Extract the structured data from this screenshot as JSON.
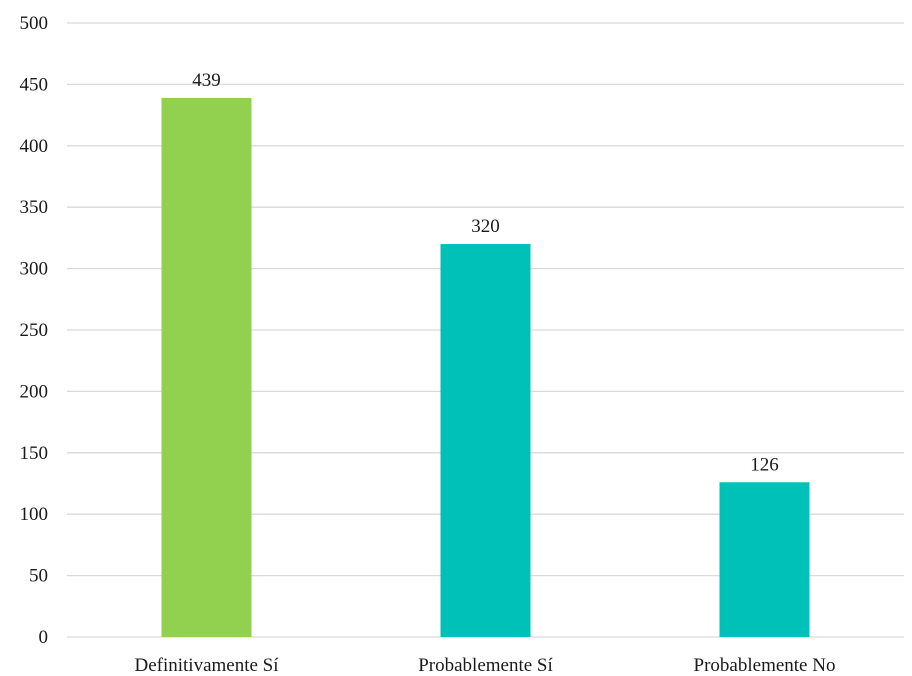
{
  "chart_data": {
    "type": "bar",
    "categories": [
      "Definitivamente Sí",
      "Probablemente Sí",
      "Probablemente No"
    ],
    "values": [
      439,
      320,
      126
    ],
    "data_labels": [
      "439",
      "320",
      "126"
    ],
    "bar_colors": [
      "#92d050",
      "#00c1b8",
      "#00c1b8"
    ],
    "ylim": [
      0,
      500
    ],
    "yticks": [
      0,
      50,
      100,
      150,
      200,
      250,
      300,
      350,
      400,
      450,
      500
    ],
    "ytick_labels": [
      "0",
      "50",
      "100",
      "150",
      "200",
      "250",
      "300",
      "350",
      "400",
      "450",
      "500"
    ],
    "grid": true,
    "gridline_color": "#d9d9d9",
    "title": "",
    "xlabel": "",
    "ylabel": ""
  }
}
